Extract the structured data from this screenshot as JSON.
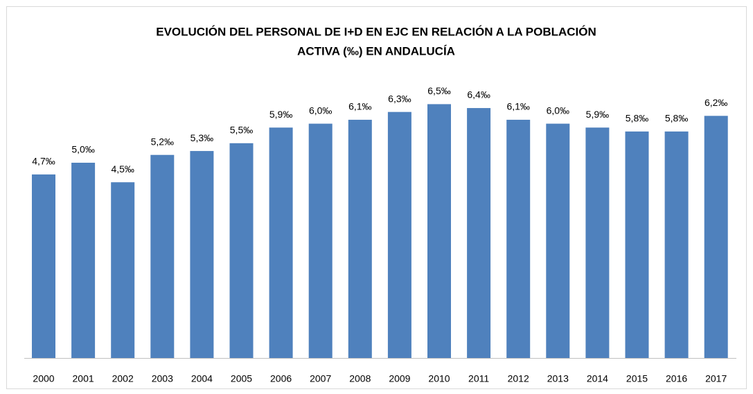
{
  "chart_data": {
    "type": "bar",
    "title": [
      "EVOLUCIÓN DEL PERSONAL DE I+D EN EJC EN RELACIÓN A LA POBLACIÓN",
      "ACTIVA (‰) EN ANDALUCÍA"
    ],
    "categories": [
      "2000",
      "2001",
      "2002",
      "2003",
      "2004",
      "2005",
      "2006",
      "2007",
      "2008",
      "2009",
      "2010",
      "2011",
      "2012",
      "2013",
      "2014",
      "2015",
      "2016",
      "2017"
    ],
    "values": [
      4.7,
      5.0,
      4.5,
      5.2,
      5.3,
      5.5,
      5.9,
      6.0,
      6.1,
      6.3,
      6.5,
      6.4,
      6.1,
      6.0,
      5.9,
      5.8,
      5.8,
      6.2
    ],
    "value_labels": [
      "4,7‰",
      "5,0‰",
      "4,5‰",
      "5,2‰",
      "5,3‰",
      "5,5‰",
      "5,9‰",
      "6,0‰",
      "6,1‰",
      "6,3‰",
      "6,5‰",
      "6,4‰",
      "6,1‰",
      "6,0‰",
      "5,9‰",
      "5,8‰",
      "5,8‰",
      "6,2‰"
    ],
    "color": "#4f81bd"
  }
}
